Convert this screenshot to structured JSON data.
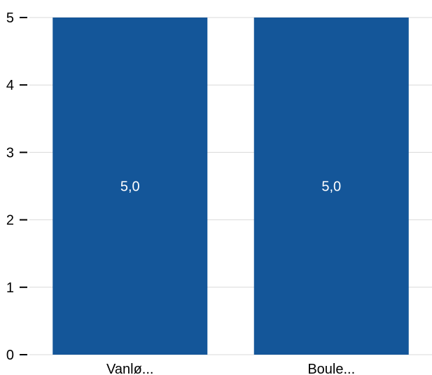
{
  "colors": {
    "bar": "#145699",
    "grid": "#d9d9d9",
    "axis": "#000000",
    "data_label": "#ffffff",
    "background": "#ffffff"
  },
  "chart_data": {
    "type": "bar",
    "title": "",
    "xlabel": "",
    "ylabel": "",
    "categories": [
      "Vanlø...",
      "Boule..."
    ],
    "values": [
      5.0,
      5.0
    ],
    "data_labels": [
      "5,0",
      "5,0"
    ],
    "y_ticks": [
      0,
      1,
      2,
      3,
      4,
      5
    ],
    "y_tick_labels": [
      "0",
      "1",
      "2",
      "3",
      "4",
      "5"
    ],
    "ylim": [
      0,
      5
    ],
    "grid": true,
    "legend": "none"
  }
}
